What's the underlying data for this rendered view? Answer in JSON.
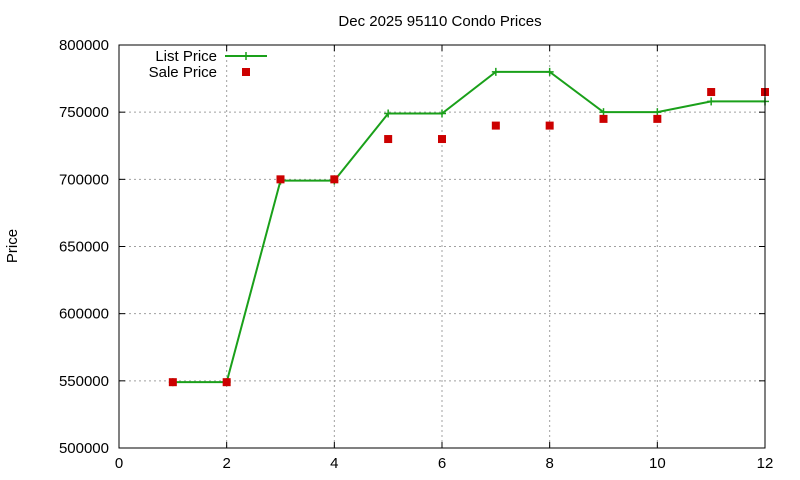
{
  "chart_data": {
    "type": "line",
    "title": "Dec 2025 95110 Condo Prices",
    "xlabel": "",
    "ylabel": "Price",
    "xlim": [
      0,
      12
    ],
    "ylim": [
      500000,
      800000
    ],
    "x_ticks": [
      0,
      2,
      4,
      6,
      8,
      10,
      12
    ],
    "y_ticks": [
      500000,
      550000,
      600000,
      650000,
      700000,
      750000,
      800000
    ],
    "grid": true,
    "legend_position": "top-left",
    "series": [
      {
        "name": "List Price",
        "style": "line-with-plus-markers",
        "color": "#1aa01a",
        "x": [
          1,
          2,
          3,
          4,
          5,
          6,
          7,
          8,
          9,
          10,
          11,
          12
        ],
        "values": [
          549000,
          549000,
          699000,
          699000,
          749000,
          749000,
          780000,
          780000,
          750000,
          750000,
          758000,
          758000
        ]
      },
      {
        "name": "Sale Price",
        "style": "square-markers",
        "color": "#cc0000",
        "x": [
          1,
          2,
          3,
          4,
          5,
          6,
          7,
          8,
          9,
          10,
          11,
          12
        ],
        "values": [
          549000,
          549000,
          700000,
          700000,
          730000,
          730000,
          740000,
          740000,
          745000,
          745000,
          765000,
          765000
        ]
      }
    ]
  }
}
